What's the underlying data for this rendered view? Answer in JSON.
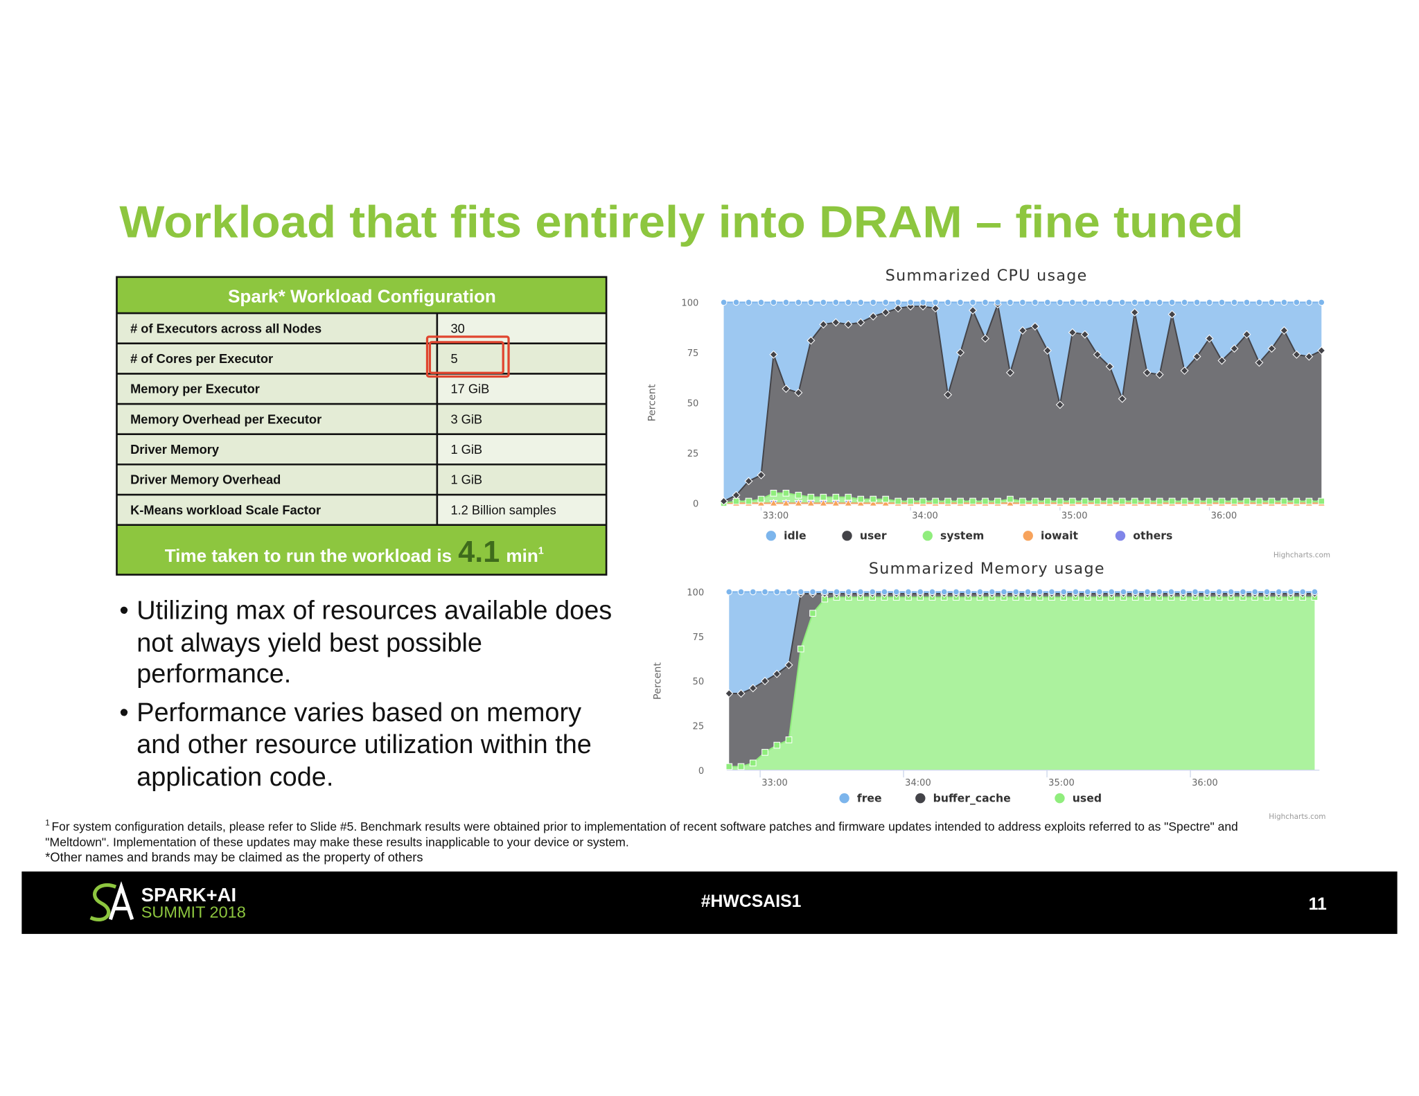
{
  "slide": {
    "title": "Workload that fits entirely into DRAM – fine tuned",
    "table": {
      "header": "Spark* Workload Configuration",
      "rows": [
        [
          "# of Executors across all Nodes",
          "30"
        ],
        [
          "# of Cores per Executor",
          "5"
        ],
        [
          "Memory per Executor",
          "17 GiB"
        ],
        [
          "Memory Overhead per Executor",
          "3 GiB"
        ],
        [
          "Driver Memory",
          "1 GiB"
        ],
        [
          "Driver Memory Overhead",
          "1 GiB"
        ],
        [
          "K-Means workload Scale Factor",
          "1.2 Billion samples"
        ]
      ],
      "summary": {
        "text": "Time taken to run the workload is",
        "value": 4.1,
        "unit": "min",
        "note": "1"
      }
    },
    "bullets": [
      [
        "Utilizing max of resources available does",
        "not always yield best possible",
        "performance."
      ],
      [
        "Performance varies based on memory",
        "and other resource utilization within the",
        "application code."
      ]
    ],
    "footnotes": {
      "mark": "1",
      "lines": [
        "For system configuration details, please refer to Slide #5. Benchmark results were obtained prior to implementation of recent software patches and firmware updates intended to address exploits referred to as \"Spectre\" and",
        "\"Meltdown\".  Implementation of these updates may make these results inapplicable to your device or system."
      ],
      "other": "*Other names and brands may be claimed as the property of others"
    },
    "footer": {
      "logo_top": "SPARK+AI",
      "logo_bottom": "SUMMIT 2018",
      "hashtag": "#HWCSAIS1",
      "page": 11
    }
  },
  "chart_data": [
    {
      "type": "area",
      "stacked": true,
      "title": "Summarized CPU usage",
      "ylabel": "Percent",
      "credits": "Highcharts.com",
      "x": [
        1965,
        1970,
        1975,
        1980,
        1985,
        1990,
        1995,
        2000,
        2005,
        2010,
        2015,
        2020,
        2025,
        2030,
        2035,
        2040,
        2045,
        2050,
        2055,
        2060,
        2065,
        2070,
        2075,
        2080,
        2085,
        2090,
        2095,
        2100,
        2105,
        2110,
        2115,
        2120,
        2125,
        2130,
        2135,
        2140,
        2145,
        2150,
        2155,
        2160,
        2165,
        2170,
        2175,
        2180,
        2185,
        2190,
        2195,
        2200,
        2205
      ],
      "xlim": [
        1964,
        2206
      ],
      "xticks": [
        {
          "value": 1980,
          "label": "33:00"
        },
        {
          "value": 2040,
          "label": "34:00"
        },
        {
          "value": 2100,
          "label": "35:00"
        },
        {
          "value": 2160,
          "label": "36:00"
        }
      ],
      "ylim": [
        0,
        100
      ],
      "yticks": [
        0,
        25,
        50,
        75,
        100
      ],
      "grid": false,
      "series": [
        {
          "name": "idle",
          "color": "#7cb5ec",
          "values": [
            99,
            96,
            89,
            86,
            26,
            43,
            45,
            19,
            11,
            10,
            11,
            10,
            7,
            5,
            3,
            2,
            2,
            3,
            46,
            25,
            4,
            18,
            1,
            35,
            14,
            12,
            24,
            51,
            15,
            16,
            26,
            32,
            48,
            5,
            35,
            36,
            6,
            34,
            27,
            18,
            29,
            23,
            16,
            30,
            23,
            14,
            26,
            27,
            24
          ]
        },
        {
          "name": "user",
          "color": "#434348",
          "values": [
            1,
            3,
            10,
            12,
            69,
            52,
            51,
            78,
            86,
            87,
            86,
            88,
            91,
            93,
            96,
            97,
            97,
            96,
            53,
            74,
            95,
            81,
            98,
            63,
            85,
            87,
            75,
            48,
            84,
            83,
            73,
            67,
            51,
            94,
            64,
            63,
            93,
            65,
            72,
            81,
            70,
            76,
            83,
            69,
            76,
            85,
            73,
            72,
            75
          ]
        },
        {
          "name": "system",
          "color": "#90ed7d",
          "values": [
            0,
            1,
            1,
            2,
            5,
            5,
            4,
            3,
            3,
            3,
            3,
            2,
            2,
            2,
            1,
            1,
            1,
            1,
            1,
            1,
            1,
            1,
            1,
            2,
            1,
            1,
            1,
            1,
            1,
            1,
            1,
            1,
            1,
            1,
            1,
            1,
            1,
            1,
            1,
            1,
            1,
            1,
            1,
            1,
            1,
            1,
            1,
            1,
            1
          ]
        },
        {
          "name": "iowait",
          "color": "#f7a35c",
          "values": [
            0,
            0,
            0,
            0,
            0,
            0,
            0,
            0,
            0,
            0,
            0,
            0,
            0,
            0,
            0,
            0,
            0,
            0,
            0,
            0,
            0,
            0,
            0,
            0,
            0,
            0,
            0,
            0,
            0,
            0,
            0,
            0,
            0,
            0,
            0,
            0,
            0,
            0,
            0,
            0,
            0,
            0,
            0,
            0,
            0,
            0,
            0,
            0,
            0
          ]
        },
        {
          "name": "others",
          "color": "#8085e9",
          "values": [
            0,
            0,
            0,
            0,
            0,
            0,
            0,
            0,
            0,
            0,
            0,
            0,
            0,
            0,
            0,
            0,
            0,
            0,
            0,
            0,
            0,
            0,
            0,
            0,
            0,
            0,
            0,
            0,
            0,
            0,
            0,
            0,
            0,
            0,
            0,
            0,
            0,
            0,
            0,
            0,
            0,
            0,
            0,
            0,
            0,
            0,
            0,
            0,
            0
          ]
        }
      ]
    },
    {
      "type": "area",
      "stacked": true,
      "title": "Summarized Memory usage",
      "ylabel": "Percent",
      "credits": "Highcharts.com",
      "x": [
        1967,
        1972,
        1977,
        1982,
        1987,
        1992,
        1997,
        2002,
        2007,
        2012,
        2017,
        2022,
        2027,
        2032,
        2037,
        2042,
        2047,
        2052,
        2057,
        2062,
        2067,
        2072,
        2077,
        2082,
        2087,
        2092,
        2097,
        2102,
        2107,
        2112,
        2117,
        2122,
        2127,
        2132,
        2137,
        2142,
        2147,
        2152,
        2157,
        2162,
        2167,
        2172,
        2177,
        2182,
        2187,
        2192,
        2197,
        2202,
        2207,
        2212
      ],
      "xlim": [
        1966,
        2214
      ],
      "xticks": [
        {
          "value": 1980,
          "label": "33:00"
        },
        {
          "value": 2040,
          "label": "34:00"
        },
        {
          "value": 2100,
          "label": "35:00"
        },
        {
          "value": 2160,
          "label": "36:00"
        }
      ],
      "ylim": [
        0,
        100
      ],
      "yticks": [
        0,
        25,
        50,
        75,
        100
      ],
      "grid": false,
      "series": [
        {
          "name": "free",
          "color": "#7cb5ec",
          "values": [
            57,
            57,
            54,
            50,
            46,
            41,
            1,
            1,
            1,
            1,
            1,
            1,
            1,
            1,
            1,
            1,
            1,
            1,
            1,
            1,
            1,
            1,
            1,
            1,
            1,
            1,
            1,
            1,
            1,
            1,
            1,
            1,
            1,
            1,
            1,
            1,
            1,
            1,
            1,
            1,
            1,
            1,
            1,
            1,
            1,
            1,
            1,
            1,
            1,
            1
          ]
        },
        {
          "name": "buffer_cache",
          "color": "#434348",
          "values": [
            41,
            41,
            42,
            40,
            40,
            42,
            31,
            11,
            3,
            2,
            2,
            2,
            2,
            2,
            2,
            2,
            2,
            2,
            2,
            2,
            2,
            2,
            2,
            2,
            2,
            2,
            2,
            2,
            2,
            2,
            2,
            2,
            2,
            2,
            2,
            2,
            2,
            2,
            2,
            2,
            2,
            2,
            2,
            2,
            2,
            2,
            2,
            2,
            2,
            2
          ]
        },
        {
          "name": "used",
          "color": "#90ed7d",
          "values": [
            2,
            2,
            4,
            10,
            14,
            17,
            68,
            88,
            96,
            97,
            97,
            97,
            97,
            97,
            97,
            97,
            97,
            97,
            97,
            97,
            97,
            97,
            97,
            97,
            97,
            97,
            97,
            97,
            97,
            97,
            97,
            97,
            97,
            97,
            97,
            97,
            97,
            97,
            97,
            97,
            97,
            97,
            97,
            97,
            97,
            97,
            97,
            97,
            97,
            97
          ]
        }
      ]
    }
  ]
}
